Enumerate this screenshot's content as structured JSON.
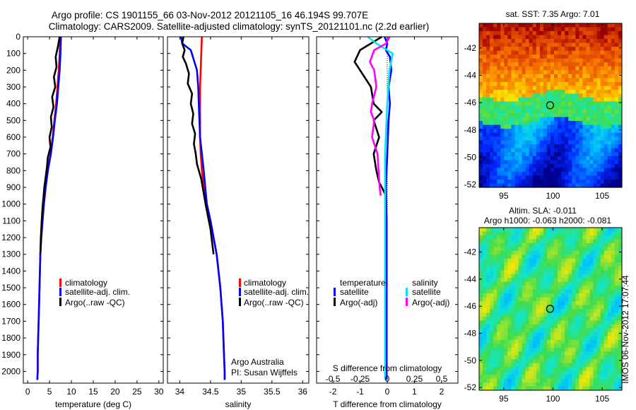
{
  "header": {
    "line1": "Argo profile: CS 1901155_66 03-Nov-2012 20121105_16 46.194S 99.707E",
    "line2": "Climatology: CARS2009. Satellite-adjusted climatology: synTS_20121101.nc (2.2d earlier)"
  },
  "colors": {
    "climatology": "#ff0000",
    "satellite_adj": "#0000ff",
    "argo": "#000000",
    "temp_satellite": "#0000ff",
    "temp_argo": "#000000",
    "sal_satellite": "#00e5ee",
    "sal_argo": "#ff00ff"
  },
  "chart_data": [
    {
      "type": "line",
      "id": "temperature",
      "xlabel": "temperature (deg C)",
      "xlim": [
        -1,
        31
      ],
      "ylim": [
        2070,
        0
      ],
      "xticks": [
        "0",
        "5",
        "10",
        "15",
        "20",
        "25",
        "30"
      ],
      "yticks": [
        "0",
        "100",
        "200",
        "300",
        "400",
        "500",
        "600",
        "700",
        "800",
        "900",
        "1000",
        "1100",
        "1200",
        "1300",
        "1400",
        "1500",
        "1600",
        "1700",
        "1800",
        "1900",
        "2000"
      ],
      "legend": [
        "climatology",
        "satellite-adj. clim.",
        "Argo(..raw -QC)"
      ],
      "series": [
        {
          "name": "climatology",
          "color_key": "climatology",
          "x": [
            7.4,
            7.3,
            7.1,
            6.8,
            6.5,
            6.1,
            5.7,
            5.2,
            4.6,
            4.1,
            3.7,
            3.4,
            3.1,
            2.9,
            2.8,
            2.7,
            2.6,
            2.5,
            2.4,
            2.3,
            2.3,
            2.2
          ],
          "y": [
            0,
            100,
            200,
            300,
            400,
            500,
            600,
            700,
            800,
            900,
            1000,
            1100,
            1200,
            1300,
            1400,
            1500,
            1600,
            1700,
            1800,
            1900,
            2000,
            2050
          ]
        },
        {
          "name": "satellite-adj. clim.",
          "color_key": "satellite_adj",
          "x": [
            7.6,
            7.5,
            7.3,
            7.0,
            6.7,
            6.2,
            5.8,
            5.3,
            4.6,
            4.1,
            3.7,
            3.4,
            3.1,
            2.9,
            2.8,
            2.7,
            2.6,
            2.5,
            2.4,
            2.3,
            2.3,
            2.2
          ],
          "y": [
            0,
            100,
            200,
            300,
            400,
            500,
            600,
            700,
            800,
            900,
            1000,
            1100,
            1200,
            1300,
            1400,
            1500,
            1600,
            1700,
            1800,
            1900,
            2000,
            2050
          ]
        },
        {
          "name": "Argo(..raw -QC)",
          "color_key": "argo",
          "x": [
            7.3,
            6.9,
            6.4,
            6.6,
            6.0,
            6.3,
            5.6,
            5.9,
            5.3,
            5.5,
            5.0,
            5.2,
            4.6,
            4.4,
            4.1,
            3.8,
            3.6,
            3.4,
            3.2,
            3.0,
            2.9
          ],
          "y": [
            0,
            60,
            120,
            180,
            240,
            300,
            360,
            420,
            480,
            540,
            600,
            660,
            720,
            780,
            840,
            900,
            960,
            1020,
            1100,
            1200,
            1300
          ]
        }
      ]
    },
    {
      "type": "line",
      "id": "salinity",
      "xlabel": "salinity",
      "xlim": [
        33.8,
        36.1
      ],
      "ylim": [
        2070,
        0
      ],
      "xticks": [
        "34",
        "34.5",
        "35",
        "35.5",
        "36"
      ],
      "legend": [
        "climatology",
        "satellite-adj. clim.",
        "Argo(..raw -QC)"
      ],
      "annotation": [
        "Argo Australia",
        "PI: Susan Wijffels"
      ],
      "series": [
        {
          "name": "climatology",
          "color_key": "climatology",
          "x": [
            34.36,
            34.35,
            34.34,
            34.33,
            34.33,
            34.33,
            34.33,
            34.34,
            34.36,
            34.39,
            34.44,
            34.5,
            34.55,
            34.6,
            34.63,
            34.66,
            34.68,
            34.7,
            34.71,
            34.72,
            34.73,
            34.73
          ],
          "y": [
            0,
            100,
            200,
            300,
            400,
            500,
            600,
            700,
            800,
            900,
            1000,
            1100,
            1200,
            1300,
            1400,
            1500,
            1600,
            1700,
            1800,
            1900,
            2000,
            2050
          ]
        },
        {
          "name": "satellite-adj. clim.",
          "color_key": "satellite_adj",
          "x": [
            34.02,
            34.04,
            34.18,
            34.28,
            34.3,
            34.31,
            34.32,
            34.33,
            34.36,
            34.39,
            34.44,
            34.5,
            34.55,
            34.6,
            34.63,
            34.66,
            34.68,
            34.7,
            34.71,
            34.72,
            34.73,
            34.73
          ],
          "y": [
            0,
            40,
            80,
            200,
            300,
            400,
            500,
            600,
            700,
            800,
            1000,
            1100,
            1200,
            1300,
            1400,
            1500,
            1600,
            1700,
            1800,
            1900,
            2000,
            2050
          ]
        },
        {
          "name": "Argo(..raw -QC)",
          "color_key": "argo",
          "x": [
            34.06,
            34.04,
            34.08,
            34.05,
            34.1,
            34.15,
            34.13,
            34.2,
            34.18,
            34.22,
            34.2,
            34.25,
            34.23,
            34.26,
            34.28,
            34.35,
            34.42,
            34.5,
            34.55
          ],
          "y": [
            0,
            40,
            80,
            120,
            160,
            220,
            280,
            340,
            400,
            460,
            520,
            580,
            640,
            700,
            760,
            850,
            1000,
            1150,
            1300
          ]
        }
      ]
    },
    {
      "type": "line",
      "id": "difference",
      "xlabel": "T difference from climatology",
      "top_label": "S difference from climatology",
      "xlim": [
        -2.6,
        2.6
      ],
      "ylim": [
        2070,
        0
      ],
      "xticks": [
        "-2",
        "-1",
        "0",
        "1",
        "2"
      ],
      "sticks": [
        "-0.5",
        "-0.25",
        "0",
        "0.25",
        "0.5"
      ],
      "legend": {
        "temperature_heading": "temperature",
        "salinity_heading": "salinity",
        "items": [
          "satellite",
          "Argo(-adj)",
          "satellite",
          "Argo(-adj)"
        ]
      },
      "series": [
        {
          "name": "temperature satellite",
          "color_key": "temp_satellite",
          "x": [
            -0.1,
            0.0,
            -0.05,
            0.1,
            0.15,
            0.05,
            0.1,
            0.05,
            0.0,
            -0.05,
            -0.02,
            -0.02,
            -0.02,
            -0.02
          ],
          "y": [
            0,
            40,
            80,
            120,
            200,
            300,
            400,
            500,
            700,
            900,
            1100,
            1300,
            1700,
            2050
          ]
        },
        {
          "name": "temperature Argo(-adj)",
          "color_key": "temp_argo",
          "x": [
            -0.2,
            -0.6,
            -1.0,
            -1.2,
            -1.0,
            -0.6,
            -0.5,
            -0.2,
            -0.5,
            -0.3,
            -0.5,
            -0.4,
            -0.3,
            -0.2,
            -0.05
          ],
          "y": [
            0,
            40,
            80,
            150,
            200,
            300,
            400,
            450,
            500,
            600,
            700,
            800,
            870,
            900,
            950
          ]
        },
        {
          "name": "salinity satellite",
          "color_key": "sal_satellite",
          "x": [
            -0.18,
            -0.1,
            0.05,
            0.02,
            0.0,
            -0.02,
            -0.02,
            -0.02,
            -0.02,
            -0.02,
            -0.02
          ],
          "y": [
            0,
            40,
            100,
            200,
            400,
            700,
            1000,
            1200,
            1500,
            1800,
            2050
          ]
        },
        {
          "name": "salinity Argo(-adj)",
          "color_key": "sal_argo",
          "x": [
            0.02,
            -0.01,
            -0.12,
            -0.16,
            -0.12,
            -0.1,
            -0.14,
            -0.15,
            -0.12,
            -0.14,
            -0.09,
            -0.08,
            -0.07,
            -0.06
          ],
          "y": [
            0,
            40,
            80,
            150,
            200,
            300,
            400,
            450,
            500,
            600,
            700,
            800,
            900,
            950
          ]
        }
      ]
    },
    {
      "type": "heatmap",
      "id": "sst_map",
      "title": "sat. SST: 7.35 Argo: 7.01",
      "xlim": [
        92.5,
        107
      ],
      "ylim": [
        -52.2,
        -40.2
      ],
      "xticks": [
        "95",
        "100",
        "105"
      ],
      "yticks": [
        "-42",
        "-44",
        "-46",
        "-48",
        "-50",
        "-52"
      ],
      "marker": {
        "lon": 99.707,
        "lat": -46.194
      }
    },
    {
      "type": "heatmap",
      "id": "sla_map",
      "title": [
        "Altim. SLA: -0.011",
        "Argo h1000: -0.063 h2000: -0.081"
      ],
      "xlim": [
        92.5,
        107
      ],
      "ylim": [
        -52.2,
        -40.2
      ],
      "xticks": [
        "95",
        "100",
        "105"
      ],
      "yticks": [
        "-42",
        "-44",
        "-46",
        "-48",
        "-50",
        "-52"
      ],
      "marker": {
        "lon": 99.707,
        "lat": -46.194
      },
      "side_label": "IMOS 06-Nov-2012 17:07:44"
    }
  ]
}
